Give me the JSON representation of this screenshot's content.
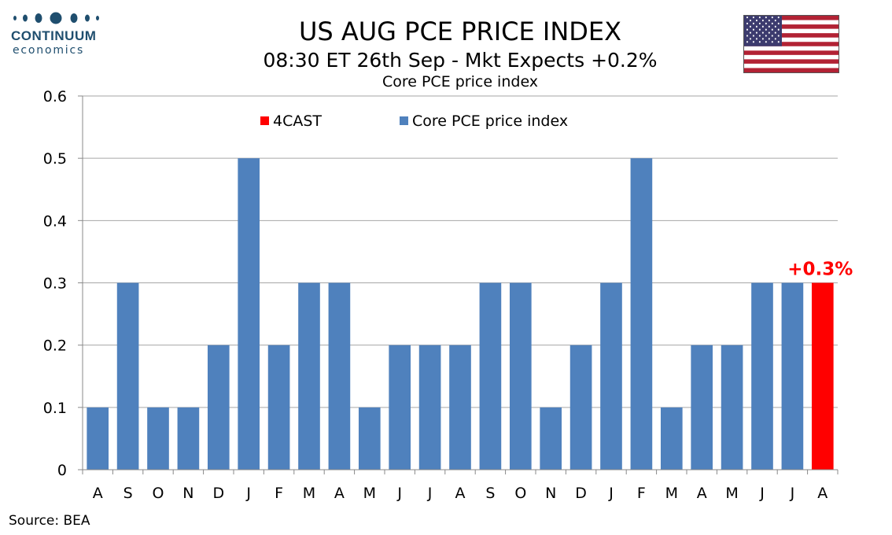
{
  "branding": {
    "name": "CONTINUUM",
    "tagline": "economics"
  },
  "header": {
    "title": "US AUG PCE PRICE INDEX",
    "subtitle": "08:30 ET 26th Sep - Mkt Expects +0.2%"
  },
  "flag_icon": "us-flag-icon",
  "footer": {
    "source": "Source: BEA"
  },
  "colors": {
    "actual": "#4f81bd",
    "forecast": "#ff0000",
    "grid": "#a6a6a6",
    "logo": "#1f4e6e"
  },
  "chart_data": {
    "type": "bar",
    "title": "Core PCE price index",
    "xlabel": "",
    "ylabel": "",
    "ylim": [
      0,
      0.6
    ],
    "yticks": [
      "0",
      "0.1",
      "0.2",
      "0.3",
      "0.4",
      "0.5",
      "0.6"
    ],
    "grid": true,
    "legend_position": "top",
    "categories": [
      "A",
      "S",
      "O",
      "N",
      "D",
      "J",
      "F",
      "M",
      "A",
      "M",
      "J",
      "J",
      "A",
      "S",
      "O",
      "N",
      "D",
      "J",
      "F",
      "M",
      "A",
      "M",
      "J",
      "J",
      "A"
    ],
    "series": [
      {
        "name": "Core PCE price index",
        "values": [
          0.1,
          0.3,
          0.1,
          0.1,
          0.2,
          0.5,
          0.2,
          0.3,
          0.3,
          0.1,
          0.2,
          0.2,
          0.2,
          0.3,
          0.3,
          0.1,
          0.2,
          0.3,
          0.5,
          0.1,
          0.2,
          0.2,
          0.3,
          0.3,
          null
        ]
      },
      {
        "name": "4CAST",
        "values": [
          null,
          null,
          null,
          null,
          null,
          null,
          null,
          null,
          null,
          null,
          null,
          null,
          null,
          null,
          null,
          null,
          null,
          null,
          null,
          null,
          null,
          null,
          null,
          null,
          0.3
        ]
      }
    ],
    "annotations": [
      {
        "text": "+0.3%",
        "category_index": 24,
        "value": 0.3
      }
    ]
  }
}
